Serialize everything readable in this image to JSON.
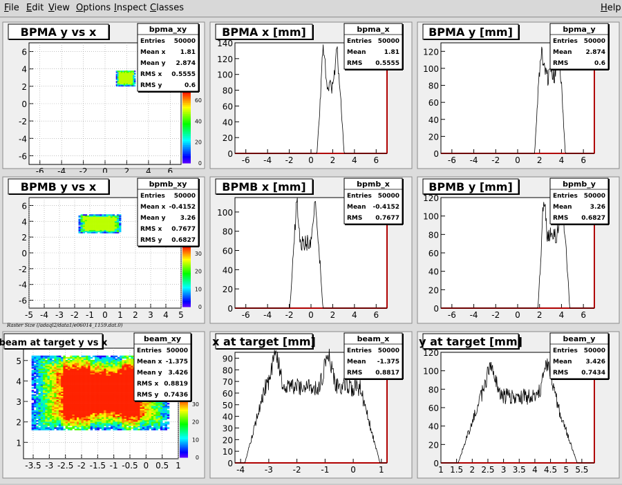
{
  "menu": [
    "File",
    "Edit",
    "View",
    "Options",
    "Inspect",
    "Classes"
  ],
  "help": "Help",
  "raster_label": "Raster Size (/adaql2/data1/e06014_1159.dat.0)",
  "pads": [
    {
      "id": "pad-bpma-xy",
      "kind": "2d",
      "title": "BPMA y vs x",
      "stats_name": "bpma_xy",
      "stats": [
        [
          "Entries",
          "50000"
        ],
        [
          "Mean x",
          "1.81"
        ],
        [
          "Mean y",
          "2.874"
        ],
        [
          "RMS x",
          "0.5555"
        ],
        [
          "RMS y",
          "0.6"
        ]
      ],
      "xticks": [
        "-6",
        "-4",
        "-2",
        "0",
        "2",
        "4",
        "6"
      ],
      "yticks": [
        "6",
        "4",
        "2",
        "0",
        "-2",
        "-4",
        "-6"
      ],
      "zticks": [
        "0",
        "20",
        "40",
        "60"
      ]
    },
    {
      "id": "pad-bpma-x",
      "kind": "1d",
      "title": "BPMA x [mm]",
      "stats_name": "bpma_x",
      "stats": [
        [
          "Entries",
          "50000"
        ],
        [
          "Mean",
          "1.81"
        ],
        [
          "RMS",
          "0.5555"
        ]
      ],
      "xticks": [
        "-6",
        "-4",
        "-2",
        "0",
        "2",
        "4",
        "6"
      ],
      "yticks": [
        "0",
        "20",
        "40",
        "60",
        "80",
        "100",
        "120",
        "140"
      ]
    },
    {
      "id": "pad-bpma-y",
      "kind": "1d",
      "title": "BPMA y [mm]",
      "stats_name": "bpma_y",
      "stats": [
        [
          "Entries",
          "50000"
        ],
        [
          "Mean",
          "2.874"
        ],
        [
          "RMS",
          "0.6"
        ]
      ],
      "xticks": [
        "-6",
        "-4",
        "-2",
        "0",
        "2",
        "4",
        "6"
      ],
      "yticks": [
        "0",
        "20",
        "40",
        "60",
        "80",
        "100",
        "120"
      ]
    },
    {
      "id": "pad-bpmb-xy",
      "kind": "2d",
      "title": "BPMB y vs x",
      "stats_name": "bpmb_xy",
      "stats": [
        [
          "Entries",
          "50000"
        ],
        [
          "Mean x",
          "-0.4152"
        ],
        [
          "Mean y",
          "3.26"
        ],
        [
          "RMS x",
          "0.7677"
        ],
        [
          "RMS y",
          "0.6827"
        ]
      ],
      "xticks": [
        "-5",
        "-4",
        "-3",
        "-2",
        "-1",
        "0",
        "1",
        "2",
        "3",
        "4",
        "5"
      ],
      "yticks": [
        "6",
        "4",
        "2",
        "0",
        "-2",
        "-4",
        "-6"
      ],
      "zticks": [
        "0",
        "10",
        "20",
        "30"
      ]
    },
    {
      "id": "pad-bpmb-x",
      "kind": "1d",
      "title": "BPMB x [mm]",
      "stats_name": "bpmb_x",
      "stats": [
        [
          "Entries",
          "50000"
        ],
        [
          "Mean",
          "-0.4152"
        ],
        [
          "RMS",
          "0.7677"
        ]
      ],
      "xticks": [
        "-6",
        "-4",
        "-2",
        "0",
        "2",
        "4",
        "6"
      ],
      "yticks": [
        "0",
        "20",
        "40",
        "60",
        "80",
        "100"
      ]
    },
    {
      "id": "pad-bpmb-y",
      "kind": "1d",
      "title": "BPMB y [mm]",
      "stats_name": "bpmb_y",
      "stats": [
        [
          "Entries",
          "50000"
        ],
        [
          "Mean",
          "3.26"
        ],
        [
          "RMS",
          "0.6827"
        ]
      ],
      "xticks": [
        "-6",
        "-4",
        "-2",
        "0",
        "2",
        "4",
        "6"
      ],
      "yticks": [
        "0",
        "20",
        "40",
        "60",
        "80",
        "100",
        "120"
      ]
    },
    {
      "id": "pad-beam-xy",
      "kind": "2d",
      "title": "beam at target y vs x",
      "stats_name": "beam_xy",
      "stats": [
        [
          "Entries",
          "50000"
        ],
        [
          "Mean x",
          "-1.375"
        ],
        [
          "Mean y",
          "3.426"
        ],
        [
          "RMS x",
          "0.8819"
        ],
        [
          "RMS y",
          "0.7436"
        ]
      ],
      "xticks": [
        "-3.5",
        "-3",
        "-2.5",
        "-2",
        "-1.5",
        "-1",
        "-0.5",
        "0",
        "0.5",
        "1"
      ],
      "yticks": [
        "5",
        "4",
        "3",
        "2",
        "1"
      ],
      "zticks": [
        "0",
        "10",
        "20",
        "30"
      ]
    },
    {
      "id": "pad-beam-x",
      "kind": "1d",
      "title": "x at target [mm]",
      "stats_name": "beam_x",
      "stats": [
        [
          "Entries",
          "50000"
        ],
        [
          "Mean",
          "-1.375"
        ],
        [
          "RMS",
          "0.8817"
        ]
      ],
      "xticks": [
        "-4",
        "-3",
        "-2",
        "-1",
        "0",
        "1"
      ],
      "yticks": [
        "0",
        "10",
        "20",
        "30",
        "40",
        "50",
        "60",
        "70",
        "80",
        "90"
      ]
    },
    {
      "id": "pad-beam-y",
      "kind": "1d",
      "title": "y at target [mm]",
      "stats_name": "beam_y",
      "stats": [
        [
          "Entries",
          "50000"
        ],
        [
          "Mean",
          "3.426"
        ],
        [
          "RMS",
          "0.7434"
        ]
      ],
      "xticks": [
        "1",
        "1.5",
        "2",
        "2.5",
        "3",
        "3.5",
        "4",
        "4.5",
        "5",
        "5.5"
      ],
      "yticks": [
        "0",
        "20",
        "40",
        "60",
        "80",
        "100",
        "120"
      ]
    }
  ]
}
